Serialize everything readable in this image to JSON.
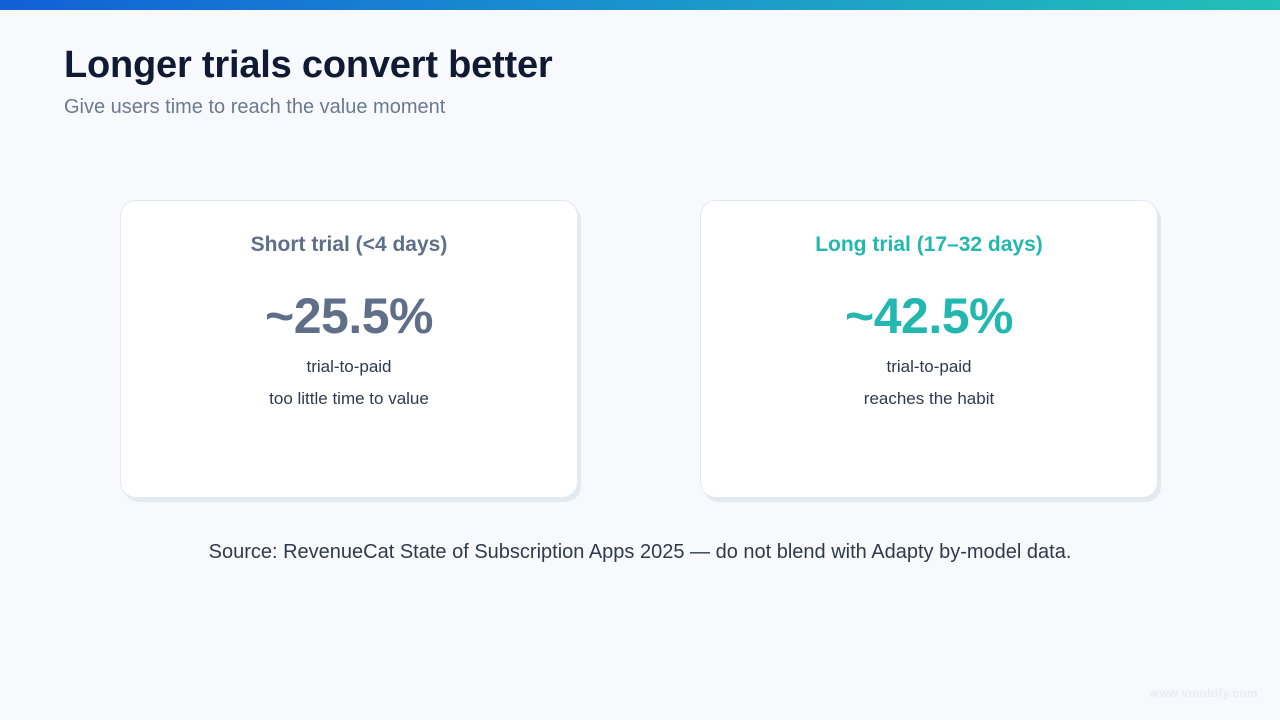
{
  "slide": {
    "title": "Longer trials convert better",
    "subtitle": "Give users time to reach the value moment"
  },
  "cards": [
    {
      "title": "Short trial (<4 days)",
      "value": "~25.5%",
      "line1": "trial-to-paid",
      "line2": "too little time to value",
      "accent_color": "#5f6f88"
    },
    {
      "title": "Long trial (17–32 days)",
      "value": "~42.5%",
      "line1": "trial-to-paid",
      "line2": "reaches the habit",
      "accent_color": "#22b8b0"
    }
  ],
  "source": "Source: RevenueCat State of Subscription Apps 2025 — do not blend with Adapty by-model data.",
  "watermark": "www.vmobify.com",
  "colors": {
    "title": "#101a33",
    "subtitle": "#6b7a8f",
    "background": "#f7f9fc",
    "bar_start": "#1160d6",
    "bar_end": "#22c0b8"
  }
}
